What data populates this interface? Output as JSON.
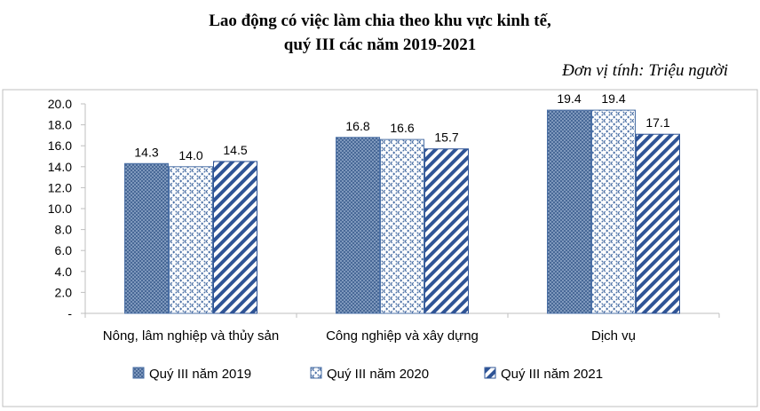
{
  "chart_data": {
    "type": "bar",
    "title_line1": "Lao động có việc làm chia theo khu vực kinh tế,",
    "title_line2": "quý III các năm 2019-2021",
    "unit": "Đơn vị tính: Triệu người",
    "categories": [
      "Nông, lâm nghiệp và thủy sản",
      "Công nghiệp và xây dựng",
      "Dịch vụ"
    ],
    "series": [
      {
        "name": "Quý III năm 2019",
        "values": [
          14.3,
          16.8,
          19.4
        ],
        "labels": [
          "14.3",
          "16.8",
          "19.4"
        ],
        "pattern": "crosshatch",
        "color": "#4a6fa5"
      },
      {
        "name": "Quý III năm 2020",
        "values": [
          14.0,
          16.6,
          19.4
        ],
        "labels": [
          "14.0",
          "16.6",
          "19.4"
        ],
        "pattern": "diagonal-dashed",
        "color": "#4a6fa5"
      },
      {
        "name": "Quý III năm 2021",
        "values": [
          14.5,
          15.7,
          17.1
        ],
        "labels": [
          "14.5",
          "15.7",
          "17.1"
        ],
        "pattern": "diagonal-wide",
        "color": "#2f5496"
      }
    ],
    "yticks": [
      "-",
      "2.0",
      "4.0",
      "6.0",
      "8.0",
      "10.0",
      "12.0",
      "14.0",
      "16.0",
      "18.0",
      "20.0"
    ],
    "ylim": [
      0,
      20
    ],
    "grid": false,
    "legend_position": "bottom"
  }
}
